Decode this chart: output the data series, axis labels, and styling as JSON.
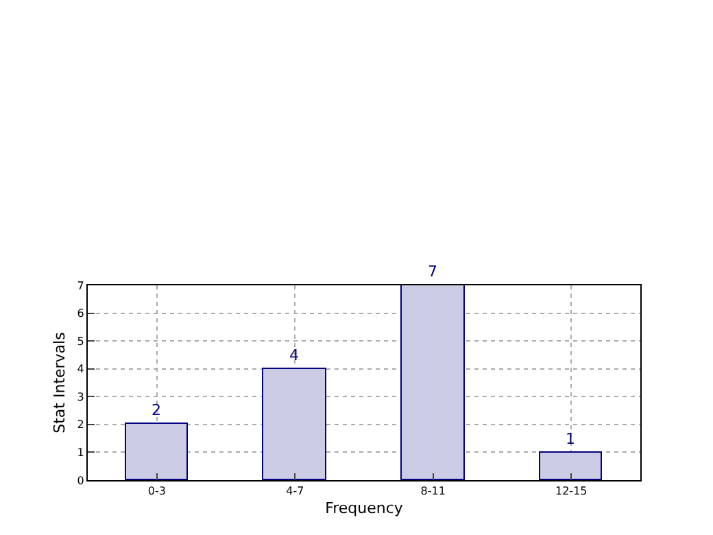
{
  "chart_data": {
    "type": "bar",
    "xlabel": "Frequency",
    "ylabel": "Stat Intervals",
    "categories": [
      "0-3",
      "4-7",
      "8-11",
      "12-15"
    ],
    "values": [
      2,
      4,
      7,
      1
    ],
    "color": "#ccccE5",
    "ylim": [
      0,
      7
    ],
    "yticks": [
      0,
      1,
      2,
      3,
      4,
      5,
      6,
      7
    ],
    "grid": true,
    "data_labels": true
  }
}
